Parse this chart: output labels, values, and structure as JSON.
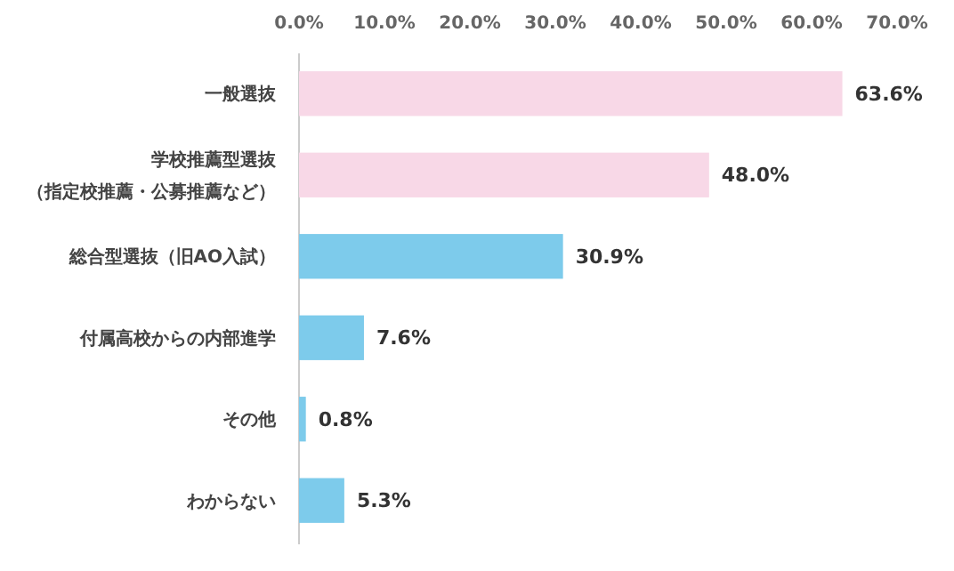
{
  "chart_data": {
    "type": "bar",
    "orientation": "horizontal",
    "categories": [
      "一般選抜",
      "学校推薦型選抜（指定校推薦・公募推薦など）",
      "総合型選抜（旧AO入試）",
      "付属高校からの内部進学",
      "その他",
      "わからない"
    ],
    "values": [
      63.6,
      48.0,
      30.9,
      7.6,
      0.8,
      5.3
    ],
    "colors": [
      "#f8d8e7",
      "#f8d8e7",
      "#7dcbeb",
      "#7dcbeb",
      "#7dcbeb",
      "#7dcbeb"
    ],
    "value_labels": [
      "63.6%",
      "48.0%",
      "30.9%",
      "7.6%",
      "0.8%",
      "5.3%"
    ],
    "xlim": [
      0,
      70
    ],
    "xticks": [
      {
        "value": 0,
        "label": "0.0%"
      },
      {
        "value": 10,
        "label": "10.0%"
      },
      {
        "value": 20,
        "label": "20.0%"
      },
      {
        "value": 30,
        "label": "30.0%"
      },
      {
        "value": 40,
        "label": "40.0%"
      },
      {
        "value": 50,
        "label": "50.0%"
      },
      {
        "value": 60,
        "label": "60.0%"
      },
      {
        "value": 70,
        "label": "70.0%"
      }
    ],
    "grid": false
  }
}
